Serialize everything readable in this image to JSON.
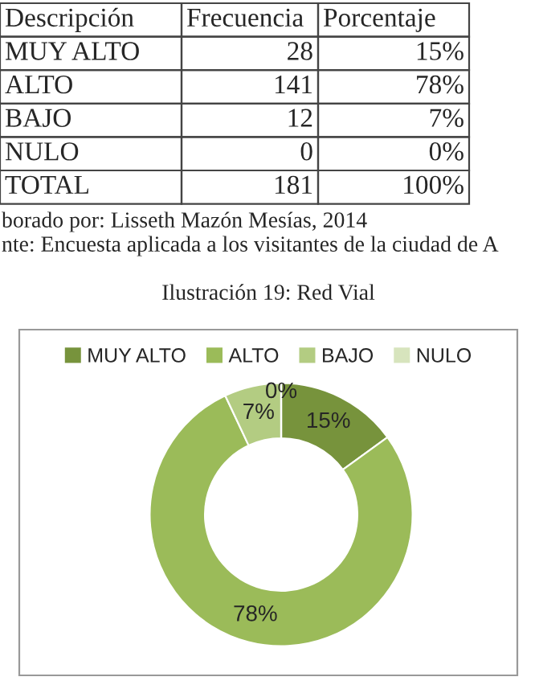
{
  "chart_data": [
    {
      "type": "other",
      "annotations": [
        "Descripción",
        "Frecuencia",
        "Porcentaje",
        "MUY ALTO",
        "28",
        "15%",
        "ALTO",
        "141",
        "78%",
        "BAJO",
        "12",
        "7%",
        "NULO",
        "0",
        "0%",
        "TOTAL",
        "181",
        "100%",
        "borado por: Lisseth Mazón Mesías, 2014",
        "nte: Encuesta aplicada a los visitantes de la ciudad de A"
      ]
    },
    {
      "type": "donut",
      "title": "Ilustración 19: Red Vial",
      "categories": [
        "MUY ALTO",
        "ALTO",
        "BAJO",
        "NULO"
      ],
      "values": [
        15,
        78,
        7,
        0
      ],
      "value_labels": [
        "15%",
        "78%",
        "7%",
        "0%"
      ],
      "colors": [
        "#77933c",
        "#9bbb59",
        "#b3cc82",
        "#d7e4bd"
      ],
      "legend": "top"
    }
  ]
}
